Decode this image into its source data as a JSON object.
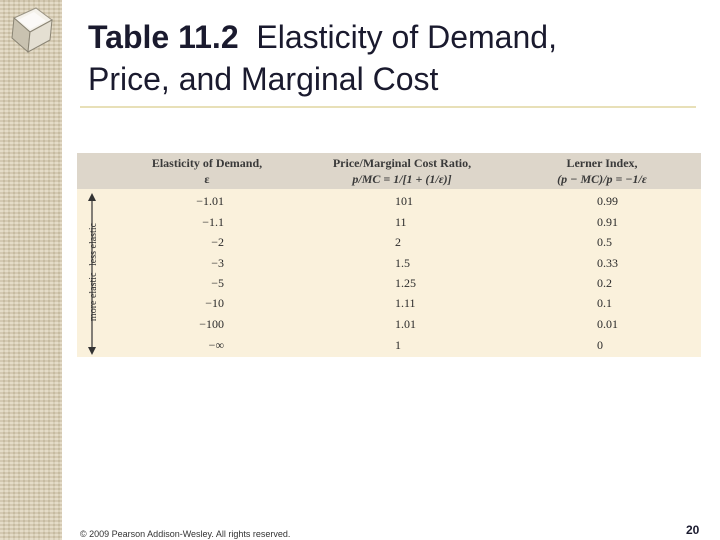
{
  "slide": {
    "title_num": "Table 11.2",
    "title_line1_rest": "Elasticity of Demand,",
    "title_line2": "Price, and Marginal Cost",
    "footer": "© 2009 Pearson Addison-Wesley. All rights reserved.",
    "page_number": "20"
  },
  "table": {
    "headers": [
      {
        "line1": "Elasticity of Demand,",
        "line2": "ε"
      },
      {
        "line1": "Price/Marginal Cost Ratio,",
        "line2": "p/MC = 1/[1 + (1/ε)]"
      },
      {
        "line1": "Lerner Index,",
        "line2": "(p − MC)/p = −1/ε"
      }
    ],
    "rows": [
      [
        "−1.01",
        "101",
        "0.99"
      ],
      [
        "−1.1",
        "11",
        "0.91"
      ],
      [
        "−2",
        "2",
        "0.5"
      ],
      [
        "−3",
        "1.5",
        "0.33"
      ],
      [
        "−5",
        "1.25",
        "0.2"
      ],
      [
        "−10",
        "1.11",
        "0.1"
      ],
      [
        "−100",
        "1.01",
        "0.01"
      ],
      [
        "−∞",
        "1",
        "0"
      ]
    ],
    "side_label_less": "less elastic",
    "side_label_more": "more elastic"
  },
  "colors": {
    "table_bg": "#faf1dc",
    "header_bg": "#ddd6ca",
    "title": "#1a1a2e"
  }
}
